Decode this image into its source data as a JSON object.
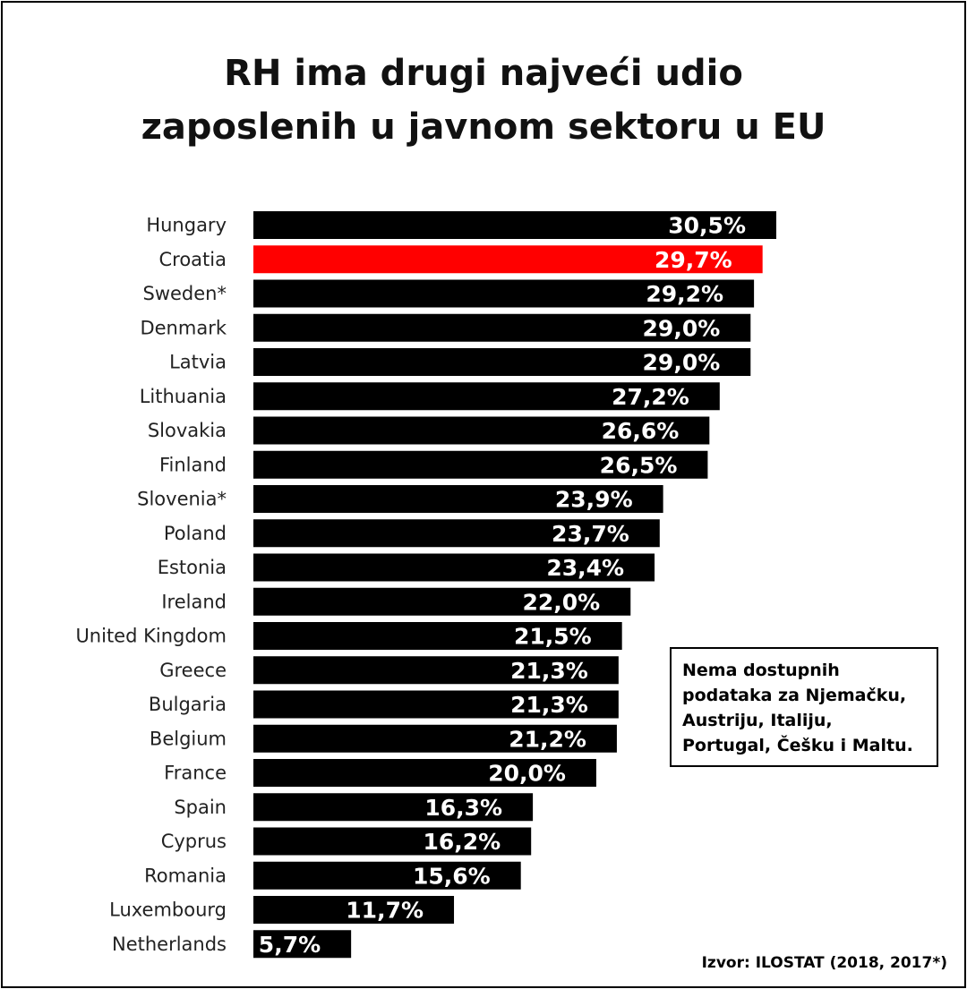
{
  "chart_data": {
    "type": "bar",
    "orientation": "horizontal",
    "title": [
      "RH ima drugi najveći udio",
      "zaposlenih u javnom sektoru u EU"
    ],
    "categories": [
      "Hungary",
      "Croatia",
      "Sweden*",
      "Denmark",
      "Latvia",
      "Lithuania",
      "Slovakia",
      "Finland",
      "Slovenia*",
      "Poland",
      "Estonia",
      "Ireland",
      "United Kingdom",
      "Greece",
      "Bulgaria",
      "Belgium",
      "France",
      "Spain",
      "Cyprus",
      "Romania",
      "Luxembourg",
      "Netherlands"
    ],
    "values": [
      30.5,
      29.7,
      29.2,
      29.0,
      29.0,
      27.2,
      26.6,
      26.5,
      23.9,
      23.7,
      23.4,
      22.0,
      21.5,
      21.3,
      21.3,
      21.2,
      20.0,
      16.3,
      16.2,
      15.6,
      11.7,
      5.7
    ],
    "value_labels": [
      "30,5%",
      "29,7%",
      "29,2%",
      "29,0%",
      "29,0%",
      "27,2%",
      "26,6%",
      "26,5%",
      "23,9%",
      "23,7%",
      "23,4%",
      "22,0%",
      "21,5%",
      "21,3%",
      "21,3%",
      "21,2%",
      "20,0%",
      "16,3%",
      "16,2%",
      "15,6%",
      "11,7%",
      "5,7%"
    ],
    "highlight": "Croatia",
    "xlim": [
      0,
      30.5
    ],
    "grid": false,
    "legend": "none",
    "colors": {
      "bar": "#000000",
      "highlight": "#ff0000",
      "bar_label": "#ffffff"
    }
  },
  "note": "Nema dostupnih podataka za Njemačku, Austriju, Italiju, Portugal, Češku i Maltu.",
  "source": "Izvor: ILOSTAT (2018, 2017*)"
}
